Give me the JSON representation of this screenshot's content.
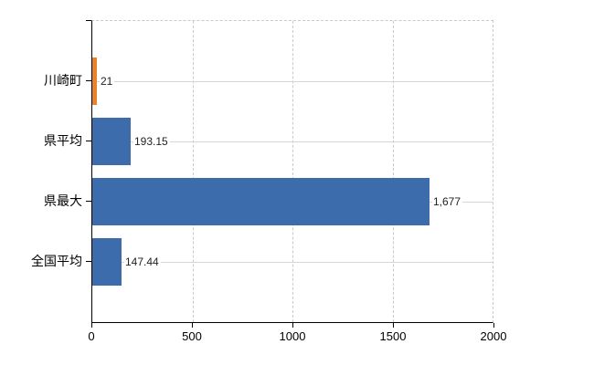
{
  "chart_data": {
    "type": "bar",
    "orientation": "horizontal",
    "title": "",
    "xlabel": "",
    "ylabel": "",
    "categories": [
      "川崎町",
      "県平均",
      "県最大",
      "全国平均"
    ],
    "values": [
      21,
      193.15,
      1677,
      147.44
    ],
    "value_labels": [
      "21",
      "193.15",
      "1,677",
      "147.44"
    ],
    "bar_colors": [
      "#e8832a",
      "#3c6cac",
      "#3c6cac",
      "#3c6cac"
    ],
    "xlim": [
      0,
      2000
    ],
    "x_ticks": [
      0,
      500,
      1000,
      1500,
      2000
    ],
    "x_tick_labels": [
      "0",
      "500",
      "1000",
      "1500",
      "2000"
    ],
    "grid": "vertical-dashed-and-horizontal-category-lines",
    "legend_position": "none"
  },
  "colors": {
    "background": "#ffffff",
    "axis": "#000000",
    "gridline": "#c9c9c9",
    "category_line": "#d6d6d2",
    "value_text": "#222222",
    "label_text": "#000000",
    "highlight_bar": "#e8832a",
    "default_bar": "#3c6cac"
  }
}
